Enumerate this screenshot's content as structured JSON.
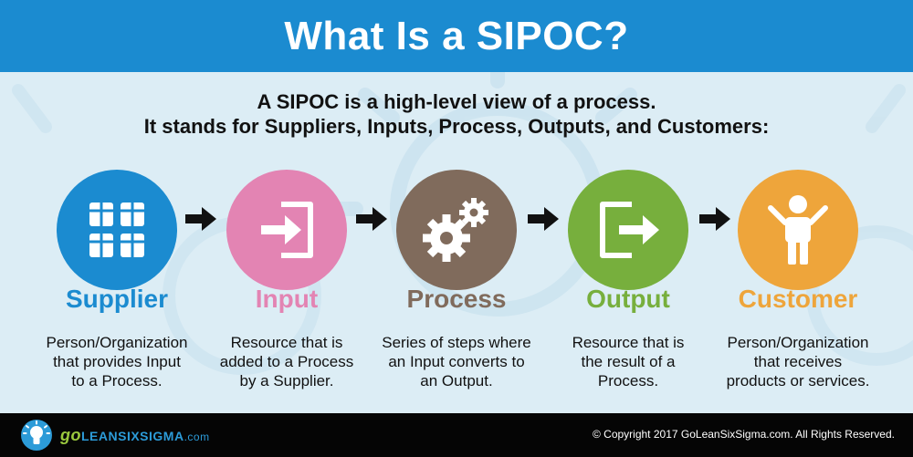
{
  "header": {
    "title": "What Is a SIPOC?"
  },
  "intro": {
    "line1": "A SIPOC is a high-level view of a process.",
    "line2": "It stands for Suppliers, Inputs, Process, Outputs, and Customers:"
  },
  "steps": [
    {
      "label": "Supplier",
      "color": "#1b8bd0",
      "icon": "blocks-icon",
      "desc": [
        "Person/Organization",
        "that provides Input",
        "to a Process."
      ]
    },
    {
      "label": "Input",
      "color": "#e384b3",
      "icon": "sign-in-icon",
      "desc": [
        "Resource that is",
        "added to a Process",
        "by a Supplier."
      ]
    },
    {
      "label": "Process",
      "color": "#806b5c",
      "icon": "gears-icon",
      "desc": [
        "Series of steps where",
        "an Input converts to",
        "an Output."
      ]
    },
    {
      "label": "Output",
      "color": "#77af3d",
      "icon": "sign-out-icon",
      "desc": [
        "Resource that is",
        "the result of a",
        "Process."
      ]
    },
    {
      "label": "Customer",
      "color": "#eea53b",
      "icon": "person-icon",
      "desc": [
        "Person/Organization",
        "that receives",
        "products or services."
      ]
    }
  ],
  "footer": {
    "brand_go": "go",
    "brand_rest": "LEANSIXSIGMA",
    "brand_domain": ".com",
    "copyright": "© Copyright 2017 GoLeanSixSigma.com. All Rights Reserved."
  }
}
